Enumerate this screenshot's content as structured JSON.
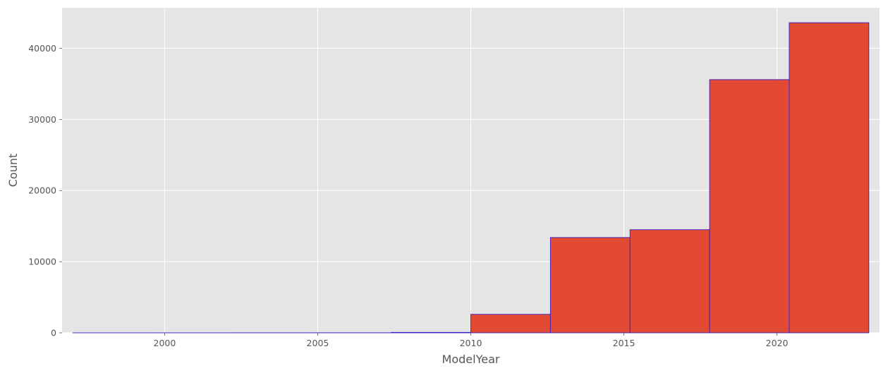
{
  "chart_data": {
    "type": "bar",
    "subtype": "histogram",
    "title": "",
    "xlabel": "ModelYear",
    "ylabel": "Count",
    "xlim": [
      1996.65,
      2023.35
    ],
    "ylim": [
      0,
      45700
    ],
    "x_ticks": [
      2000,
      2005,
      2010,
      2015,
      2020
    ],
    "y_ticks": [
      0,
      10000,
      20000,
      30000,
      40000
    ],
    "x_tick_labels": [
      "2000",
      "2005",
      "2010",
      "2015",
      "2020"
    ],
    "y_tick_labels": [
      "0",
      "10000",
      "20000",
      "30000",
      "40000"
    ],
    "bins": [
      {
        "start": 1997.0,
        "end": 1999.6,
        "value": 1
      },
      {
        "start": 1999.6,
        "end": 2002.2,
        "value": 2
      },
      {
        "start": 2002.2,
        "end": 2004.8,
        "value": 5
      },
      {
        "start": 2004.8,
        "end": 2007.4,
        "value": 10
      },
      {
        "start": 2007.4,
        "end": 2010.0,
        "value": 60
      },
      {
        "start": 2010.0,
        "end": 2012.6,
        "value": 2600
      },
      {
        "start": 2012.6,
        "end": 2015.2,
        "value": 13400
      },
      {
        "start": 2015.2,
        "end": 2017.8,
        "value": 14500
      },
      {
        "start": 2017.8,
        "end": 2020.4,
        "value": 35600
      },
      {
        "start": 2020.4,
        "end": 2023.0,
        "value": 43600
      }
    ],
    "grid": true,
    "colors": {
      "background": "#E5E5E5",
      "grid": "#FFFFFF",
      "bar_fill": "#E24A33",
      "bar_edge": "#3B1FC4",
      "text": "#555555"
    }
  }
}
